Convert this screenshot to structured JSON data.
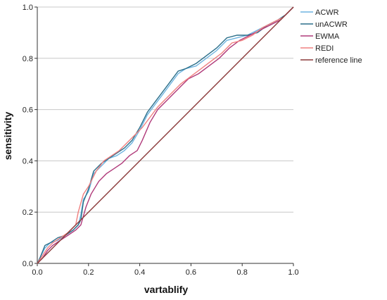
{
  "chart_data": {
    "type": "line",
    "xlabel": "vartablify",
    "ylabel": "sensitivity",
    "xlim": [
      0,
      1
    ],
    "ylim": [
      0,
      1
    ],
    "xticks": [
      "0.0",
      "0.2",
      "0.4",
      "0.6",
      "0.8",
      "1.0"
    ],
    "yticks": [
      "0.0",
      "0.2",
      "0.4",
      "0.6",
      "0.8",
      "1.0"
    ],
    "grid": "horizontal",
    "legend_position": "right",
    "series": [
      {
        "name": "ACWR",
        "color": "#6fb4e0",
        "points": [
          [
            0,
            0
          ],
          [
            0.01,
            0.02
          ],
          [
            0.03,
            0.06
          ],
          [
            0.05,
            0.08
          ],
          [
            0.08,
            0.09
          ],
          [
            0.11,
            0.11
          ],
          [
            0.14,
            0.13
          ],
          [
            0.16,
            0.15
          ],
          [
            0.17,
            0.19
          ],
          [
            0.18,
            0.25
          ],
          [
            0.2,
            0.28
          ],
          [
            0.22,
            0.35
          ],
          [
            0.25,
            0.38
          ],
          [
            0.28,
            0.41
          ],
          [
            0.31,
            0.42
          ],
          [
            0.34,
            0.44
          ],
          [
            0.37,
            0.47
          ],
          [
            0.4,
            0.52
          ],
          [
            0.43,
            0.58
          ],
          [
            0.46,
            0.62
          ],
          [
            0.49,
            0.66
          ],
          [
            0.52,
            0.7
          ],
          [
            0.55,
            0.74
          ],
          [
            0.58,
            0.76
          ],
          [
            0.62,
            0.77
          ],
          [
            0.66,
            0.8
          ],
          [
            0.7,
            0.83
          ],
          [
            0.74,
            0.87
          ],
          [
            0.78,
            0.88
          ],
          [
            0.82,
            0.89
          ],
          [
            0.86,
            0.91
          ],
          [
            0.9,
            0.93
          ],
          [
            0.94,
            0.95
          ],
          [
            0.97,
            0.97
          ],
          [
            1,
            1
          ]
        ]
      },
      {
        "name": "unACWR",
        "color": "#2b6f8a",
        "points": [
          [
            0,
            0
          ],
          [
            0.01,
            0.02
          ],
          [
            0.03,
            0.07
          ],
          [
            0.05,
            0.08
          ],
          [
            0.08,
            0.1
          ],
          [
            0.11,
            0.11
          ],
          [
            0.14,
            0.13
          ],
          [
            0.16,
            0.15
          ],
          [
            0.17,
            0.17
          ],
          [
            0.18,
            0.24
          ],
          [
            0.2,
            0.29
          ],
          [
            0.22,
            0.36
          ],
          [
            0.25,
            0.39
          ],
          [
            0.28,
            0.41
          ],
          [
            0.31,
            0.43
          ],
          [
            0.34,
            0.45
          ],
          [
            0.37,
            0.48
          ],
          [
            0.4,
            0.53
          ],
          [
            0.43,
            0.59
          ],
          [
            0.46,
            0.63
          ],
          [
            0.49,
            0.67
          ],
          [
            0.52,
            0.71
          ],
          [
            0.55,
            0.75
          ],
          [
            0.58,
            0.76
          ],
          [
            0.62,
            0.78
          ],
          [
            0.66,
            0.81
          ],
          [
            0.7,
            0.84
          ],
          [
            0.74,
            0.88
          ],
          [
            0.78,
            0.89
          ],
          [
            0.82,
            0.89
          ],
          [
            0.86,
            0.9
          ],
          [
            0.9,
            0.93
          ],
          [
            0.94,
            0.95
          ],
          [
            0.97,
            0.97
          ],
          [
            1,
            1
          ]
        ]
      },
      {
        "name": "EWMA",
        "color": "#b03a7a",
        "points": [
          [
            0,
            0
          ],
          [
            0.02,
            0.02
          ],
          [
            0.04,
            0.05
          ],
          [
            0.06,
            0.07
          ],
          [
            0.09,
            0.09
          ],
          [
            0.12,
            0.11
          ],
          [
            0.15,
            0.13
          ],
          [
            0.17,
            0.15
          ],
          [
            0.19,
            0.22
          ],
          [
            0.21,
            0.27
          ],
          [
            0.24,
            0.32
          ],
          [
            0.27,
            0.35
          ],
          [
            0.3,
            0.37
          ],
          [
            0.33,
            0.39
          ],
          [
            0.36,
            0.42
          ],
          [
            0.39,
            0.44
          ],
          [
            0.41,
            0.48
          ],
          [
            0.44,
            0.55
          ],
          [
            0.47,
            0.6
          ],
          [
            0.5,
            0.63
          ],
          [
            0.53,
            0.66
          ],
          [
            0.56,
            0.69
          ],
          [
            0.59,
            0.72
          ],
          [
            0.63,
            0.74
          ],
          [
            0.67,
            0.77
          ],
          [
            0.71,
            0.8
          ],
          [
            0.75,
            0.84
          ],
          [
            0.79,
            0.87
          ],
          [
            0.83,
            0.89
          ],
          [
            0.87,
            0.91
          ],
          [
            0.91,
            0.93
          ],
          [
            0.95,
            0.95
          ],
          [
            0.98,
            0.98
          ],
          [
            1,
            1
          ]
        ]
      },
      {
        "name": "REDI",
        "color": "#f08080",
        "points": [
          [
            0,
            0
          ],
          [
            0.02,
            0.03
          ],
          [
            0.04,
            0.06
          ],
          [
            0.06,
            0.08
          ],
          [
            0.09,
            0.1
          ],
          [
            0.12,
            0.12
          ],
          [
            0.15,
            0.15
          ],
          [
            0.16,
            0.2
          ],
          [
            0.18,
            0.27
          ],
          [
            0.2,
            0.3
          ],
          [
            0.23,
            0.36
          ],
          [
            0.26,
            0.4
          ],
          [
            0.29,
            0.42
          ],
          [
            0.32,
            0.44
          ],
          [
            0.35,
            0.47
          ],
          [
            0.38,
            0.5
          ],
          [
            0.41,
            0.53
          ],
          [
            0.44,
            0.57
          ],
          [
            0.47,
            0.61
          ],
          [
            0.5,
            0.64
          ],
          [
            0.53,
            0.67
          ],
          [
            0.56,
            0.7
          ],
          [
            0.6,
            0.73
          ],
          [
            0.64,
            0.76
          ],
          [
            0.68,
            0.79
          ],
          [
            0.72,
            0.82
          ],
          [
            0.76,
            0.86
          ],
          [
            0.8,
            0.87
          ],
          [
            0.84,
            0.89
          ],
          [
            0.88,
            0.92
          ],
          [
            0.92,
            0.94
          ],
          [
            0.96,
            0.96
          ],
          [
            1,
            1
          ]
        ]
      },
      {
        "name": "reference line",
        "color": "#8b3a3a",
        "points": [
          [
            0,
            0
          ],
          [
            1,
            1
          ]
        ]
      }
    ]
  }
}
